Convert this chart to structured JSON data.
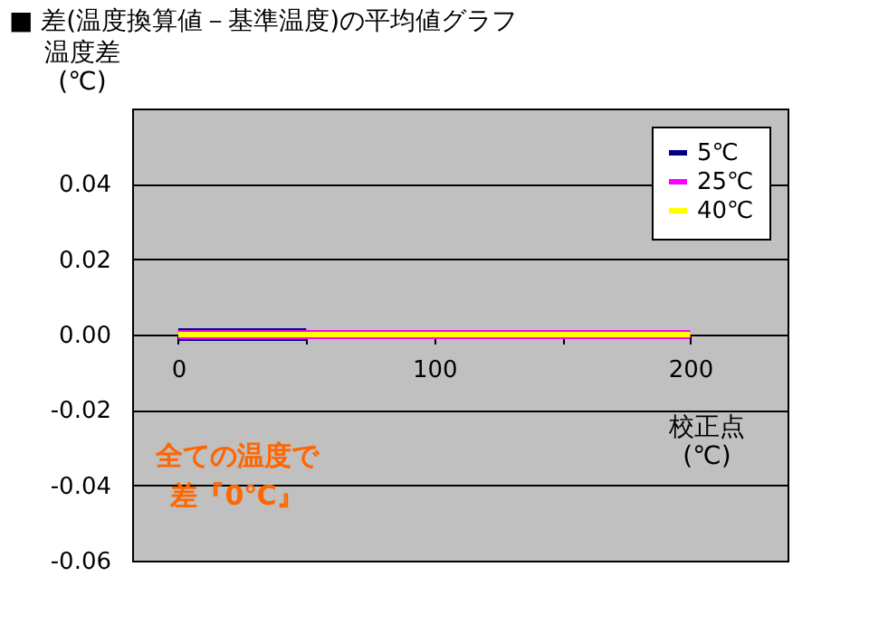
{
  "chart_data": {
    "type": "line",
    "title": "■ 差(温度換算値－基準温度)の平均値グラフ",
    "xlabel": "校正点\n(℃)",
    "ylabel": "温度差\n(℃)",
    "series": [
      {
        "name": "5℃",
        "color": "#000080",
        "x": [
          0,
          50
        ],
        "values": [
          0,
          0
        ]
      },
      {
        "name": "25℃",
        "color": "#ff00ff",
        "x": [
          0,
          200
        ],
        "values": [
          0,
          0
        ]
      },
      {
        "name": "40℃",
        "color": "#ffff00",
        "x": [
          0,
          200
        ],
        "values": [
          0,
          0
        ]
      }
    ],
    "xlim": [
      -18,
      238
    ],
    "xticks": [
      0,
      {
        "value": 50,
        "label": null
      },
      100,
      {
        "value": 150,
        "label": null
      },
      200
    ],
    "ylim": [
      -0.06,
      0.06
    ],
    "yticks": [
      -0.06,
      -0.04,
      -0.02,
      {
        "value": 0,
        "label": "0.00"
      },
      0.02,
      0.04
    ],
    "grid": "y",
    "legend": "top right",
    "marker": "none",
    "line_style": "solid",
    "annotations": [
      "全ての温度で差『0℃』"
    ]
  }
}
